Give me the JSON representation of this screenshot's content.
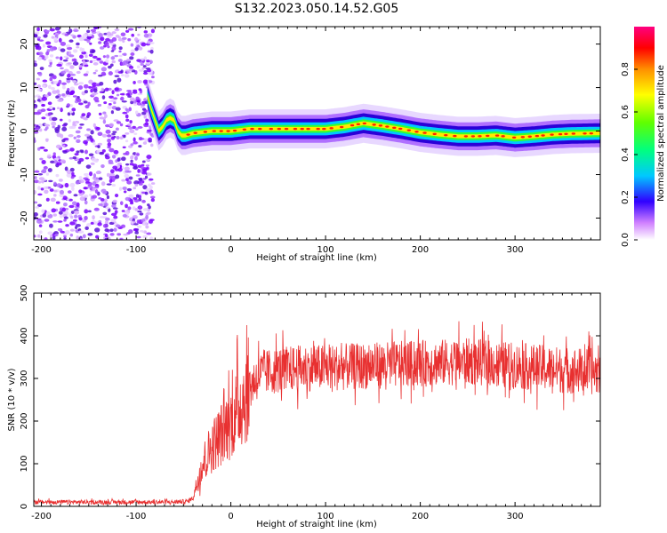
{
  "title": "S132.2023.050.14.52.G05",
  "chart_data": [
    {
      "type": "heatmap",
      "xlabel": "Height of straight line (km)",
      "ylabel": "Frequency (Hz)",
      "xlim": [
        -208,
        390
      ],
      "ylim": [
        -25,
        24
      ],
      "xticks": [
        -200,
        -100,
        0,
        100,
        200,
        300
      ],
      "yticks": [
        -20,
        -10,
        0,
        10,
        20
      ],
      "colorbar": {
        "label": "Normalized spectral amplitude",
        "ticks": [
          "0.0",
          "0.2",
          "0.4",
          "0.6",
          "0.8"
        ],
        "range": [
          0,
          1
        ]
      },
      "noise_region_km": [
        -208,
        -82
      ],
      "ridge": [
        [
          -88,
          8
        ],
        [
          -84,
          5
        ],
        [
          -80,
          2.5
        ],
        [
          -76,
          0
        ],
        [
          -72,
          1
        ],
        [
          -68,
          2.5
        ],
        [
          -64,
          3
        ],
        [
          -60,
          2.5
        ],
        [
          -56,
          0
        ],
        [
          -52,
          -1
        ],
        [
          -48,
          -1
        ],
        [
          -40,
          -0.5
        ],
        [
          -20,
          0
        ],
        [
          0,
          0
        ],
        [
          20,
          0.5
        ],
        [
          50,
          0.5
        ],
        [
          80,
          0.5
        ],
        [
          100,
          0.5
        ],
        [
          120,
          1
        ],
        [
          140,
          1.8
        ],
        [
          160,
          1.2
        ],
        [
          180,
          0.5
        ],
        [
          200,
          -0.3
        ],
        [
          220,
          -0.8
        ],
        [
          240,
          -1.2
        ],
        [
          260,
          -1.2
        ],
        [
          280,
          -1
        ],
        [
          300,
          -1.5
        ],
        [
          320,
          -1.2
        ],
        [
          340,
          -0.8
        ],
        [
          360,
          -0.6
        ],
        [
          390,
          -0.5
        ]
      ]
    },
    {
      "type": "line",
      "xlabel": "Height of straight line (km)",
      "ylabel": "SNR (10 * v/v)",
      "xlim": [
        -208,
        390
      ],
      "ylim": [
        0,
        500
      ],
      "xticks": [
        -200,
        -100,
        0,
        100,
        200,
        300
      ],
      "yticks": [
        0,
        100,
        200,
        300,
        400,
        500
      ],
      "series": [
        {
          "color": "#e83030",
          "x": [
            -208,
            -180,
            -150,
            -100,
            -60,
            -45,
            -40,
            -35,
            -30,
            -20,
            -10,
            0,
            10,
            20,
            30,
            50,
            80,
            100,
            150,
            200,
            250,
            300,
            350,
            390
          ],
          "y": [
            10,
            10,
            10,
            10,
            10,
            12,
            20,
            60,
            100,
            140,
            170,
            200,
            240,
            280,
            310,
            320,
            325,
            325,
            330,
            335,
            340,
            330,
            320,
            315
          ]
        }
      ]
    }
  ]
}
